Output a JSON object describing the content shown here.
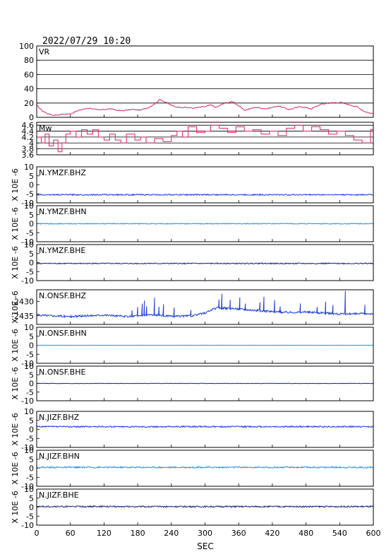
{
  "header": {
    "timestamp": "2022/07/29 10:20"
  },
  "chart_data": {
    "type": "line",
    "xlabel": "SEC",
    "xlim": [
      0,
      600
    ],
    "xticks": [
      0,
      60,
      120,
      180,
      240,
      300,
      360,
      420,
      480,
      540,
      600
    ],
    "panels": [
      {
        "label": "VR",
        "ylim": [
          0,
          100
        ],
        "yticks": [
          0,
          20,
          40,
          60,
          80,
          100
        ],
        "grid": true,
        "color": "#e0245e",
        "step": false,
        "x": [
          0,
          10,
          20,
          30,
          45,
          60,
          70,
          80,
          95,
          110,
          130,
          150,
          170,
          185,
          200,
          210,
          220,
          230,
          245,
          260,
          280,
          300,
          310,
          320,
          335,
          350,
          360,
          370,
          390,
          410,
          430,
          450,
          470,
          490,
          505,
          520,
          540,
          555,
          570,
          585,
          600
        ],
        "y": [
          17,
          9,
          5,
          3,
          4,
          5,
          8,
          11,
          13,
          10,
          12,
          9,
          11,
          10,
          14,
          19,
          25,
          21,
          15,
          14,
          13,
          15,
          17,
          14,
          20,
          22,
          16,
          10,
          14,
          12,
          16,
          11,
          15,
          12,
          18,
          20,
          21,
          18,
          15,
          8,
          5
        ]
      },
      {
        "label": "Mw",
        "ylim": [
          3.6,
          4.7
        ],
        "yticks": [
          3.6,
          3.8,
          4.0,
          4.2,
          4.4,
          4.6
        ],
        "grid": true,
        "color": "#e0245e",
        "step": true,
        "x": [
          0,
          8,
          15,
          22,
          30,
          38,
          45,
          52,
          60,
          70,
          80,
          90,
          100,
          110,
          120,
          130,
          140,
          150,
          160,
          175,
          185,
          195,
          210,
          225,
          240,
          250,
          260,
          270,
          285,
          300,
          310,
          325,
          340,
          355,
          370,
          385,
          400,
          415,
          430,
          445,
          460,
          475,
          490,
          505,
          520,
          535,
          550,
          565,
          580,
          595
        ],
        "y": [
          4.2,
          4.0,
          4.3,
          3.9,
          4.1,
          3.7,
          4.0,
          4.3,
          4.4,
          4.2,
          4.45,
          4.3,
          4.45,
          4.2,
          4.1,
          4.3,
          4.1,
          4.0,
          4.3,
          4.1,
          4.2,
          4.0,
          4.15,
          4.05,
          4.25,
          4.4,
          4.2,
          4.55,
          4.35,
          4.4,
          4.6,
          4.5,
          4.35,
          4.55,
          4.4,
          4.45,
          4.3,
          4.4,
          4.25,
          4.5,
          4.6,
          4.4,
          4.55,
          4.45,
          4.3,
          4.4,
          4.25,
          4.1,
          4.0,
          4.45
        ]
      },
      {
        "label": "N.YMZF.BHZ",
        "ylabel": "X 10E -6",
        "ylim": [
          -10,
          10
        ],
        "yticks": [
          -10,
          -5,
          0,
          5,
          10
        ],
        "color": "#1f3ed6",
        "baseline": -5.5,
        "amp": 0.35,
        "spikes": []
      },
      {
        "label": "N.YMZF.BHN",
        "ylabel": "X 10E -6",
        "ylim": [
          -10,
          10
        ],
        "yticks": [
          -10,
          -5,
          0,
          5,
          10
        ],
        "color": "#2e8cd8",
        "baseline": 0,
        "amp": 0.25,
        "spikes": []
      },
      {
        "label": "N.YMZF.BHE",
        "ylabel": "X 10E -6",
        "ylim": [
          -10,
          10
        ],
        "yticks": [
          -10,
          -5,
          0,
          5,
          10
        ],
        "color": "#1a237e",
        "baseline": -0.5,
        "amp": 0.3,
        "spikes": []
      },
      {
        "label": "N.ONSF.BHZ",
        "ylabel": "X 10E -6",
        "ylim": [
          -2438,
          -2426
        ],
        "yticks": [
          -2430,
          -2435
        ],
        "color": "#1f3ed6",
        "baseline": -2434.5,
        "amp": 0.35,
        "trend_x": [
          0,
          60,
          120,
          160,
          200,
          240,
          280,
          300,
          320,
          360,
          400,
          440,
          480,
          540,
          600
        ],
        "trend_y": [
          -2434.7,
          -2435.3,
          -2434.7,
          -2435.3,
          -2434.6,
          -2435.2,
          -2435.0,
          -2434.0,
          -2432.3,
          -2432.6,
          -2433.3,
          -2433.8,
          -2433.7,
          -2434.4,
          -2434.2
        ],
        "spikes": [
          [
            170,
            2
          ],
          [
            180,
            3
          ],
          [
            188,
            4
          ],
          [
            192,
            5
          ],
          [
            196,
            3
          ],
          [
            210,
            6
          ],
          [
            218,
            3
          ],
          [
            226,
            4
          ],
          [
            245,
            3
          ],
          [
            275,
            2
          ],
          [
            325,
            3
          ],
          [
            330,
            5
          ],
          [
            345,
            3
          ],
          [
            362,
            4
          ],
          [
            372,
            2
          ],
          [
            398,
            3
          ],
          [
            405,
            5
          ],
          [
            424,
            4
          ],
          [
            434,
            2
          ],
          [
            470,
            3
          ],
          [
            500,
            2
          ],
          [
            515,
            4
          ],
          [
            528,
            3
          ],
          [
            550,
            8
          ],
          [
            585,
            3
          ]
        ]
      },
      {
        "label": "N.ONSF.BHN",
        "ylabel": "X 10E -6",
        "ylim": [
          -10,
          10
        ],
        "yticks": [
          -10,
          -5,
          0,
          5,
          10
        ],
        "color": "#2e8cd8",
        "baseline": 0,
        "amp": 0.05,
        "spikes": []
      },
      {
        "label": "N.ONSF.BHE",
        "ylabel": "X 10E -6",
        "ylim": [
          -10,
          10
        ],
        "yticks": [
          -10,
          -5,
          0,
          5,
          10
        ],
        "color": "#1a237e",
        "baseline": 0,
        "amp": 0.12,
        "spikes": []
      },
      {
        "label": "N.JIZF.BHZ",
        "ylabel": "X 10E -6",
        "ylim": [
          -10,
          10
        ],
        "yticks": [
          -10,
          -5,
          0,
          5,
          10
        ],
        "color": "#1f3ed6",
        "baseline": 1.5,
        "amp": 0.4,
        "spikes": []
      },
      {
        "label": "N.JIZF.BHN",
        "ylabel": "X 10E -6",
        "ylim": [
          -10,
          10
        ],
        "yticks": [
          -10,
          -5,
          0,
          5,
          10
        ],
        "color": "#2e8cd8",
        "baseline": 0.5,
        "amp": 0.4,
        "spikes": []
      },
      {
        "label": "N.JIZF.BHE",
        "ylabel": "X 10E -6",
        "ylim": [
          -10,
          10
        ],
        "yticks": [
          -10,
          -5,
          0,
          5,
          10
        ],
        "color": "#1a237e",
        "baseline": 0.3,
        "amp": 0.4,
        "spikes": []
      }
    ]
  }
}
